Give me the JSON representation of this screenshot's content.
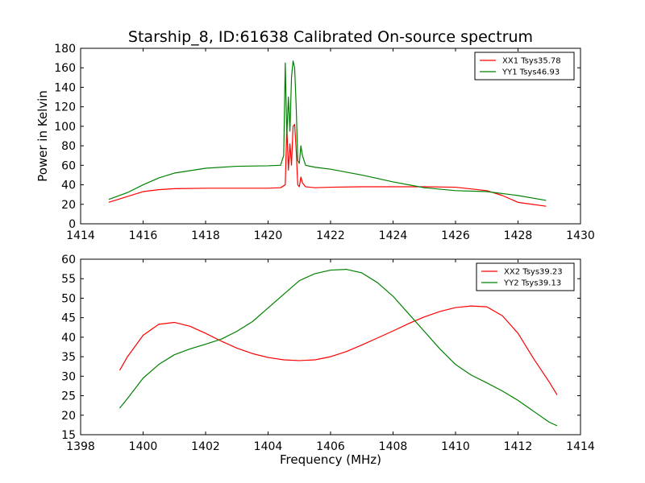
{
  "chart_data": [
    {
      "type": "line",
      "title": "Starship_8, ID:61638 Calibrated On-source spectrum",
      "xlabel": "",
      "ylabel": "Power in Kelvin",
      "xlim": [
        1414,
        1430
      ],
      "ylim": [
        0,
        180
      ],
      "xticks": [
        "1414",
        "1416",
        "1418",
        "1420",
        "1422",
        "1424",
        "1426",
        "1428",
        "1430"
      ],
      "yticks": [
        "0",
        "20",
        "40",
        "60",
        "80",
        "100",
        "120",
        "140",
        "160",
        "180"
      ],
      "grid": false,
      "legend_position": "top-right",
      "series": [
        {
          "name": "XX1 Tsys35.78",
          "color": "#ff0000",
          "x": [
            1414.9,
            1415.5,
            1416,
            1416.5,
            1417,
            1418,
            1419,
            1420,
            1420.4,
            1420.55,
            1420.6,
            1420.65,
            1420.7,
            1420.75,
            1420.8,
            1420.85,
            1420.9,
            1420.95,
            1421.0,
            1421.05,
            1421.1,
            1421.2,
            1421.5,
            1422,
            1423,
            1424,
            1425,
            1426,
            1427,
            1427.5,
            1428,
            1428.9
          ],
          "values": [
            22,
            28,
            33,
            35,
            36,
            36.5,
            36.5,
            36.5,
            37,
            40,
            100,
            55,
            82,
            60,
            100,
            102,
            75,
            40,
            38,
            48,
            42,
            38,
            37,
            37.5,
            38,
            38,
            38,
            37.5,
            34,
            29,
            22,
            18
          ]
        },
        {
          "name": "YY1 Tsys46.93",
          "color": "#008000",
          "x": [
            1414.9,
            1415.5,
            1416,
            1416.5,
            1417,
            1418,
            1419,
            1420,
            1420.4,
            1420.5,
            1420.55,
            1420.6,
            1420.65,
            1420.7,
            1420.75,
            1420.8,
            1420.85,
            1420.9,
            1420.95,
            1421.0,
            1421.05,
            1421.1,
            1421.2,
            1421.5,
            1422,
            1423,
            1424,
            1425,
            1426,
            1427,
            1428,
            1428.9
          ],
          "values": [
            25,
            32,
            40,
            47,
            52,
            57,
            59,
            59.5,
            60,
            70,
            165,
            90,
            130,
            95,
            150,
            167,
            160,
            120,
            65,
            62,
            80,
            70,
            60,
            58,
            56,
            50,
            43,
            37,
            34,
            33,
            29,
            24
          ]
        }
      ]
    },
    {
      "type": "line",
      "title": "",
      "xlabel": "Frequency (MHz)",
      "ylabel": "",
      "xlim": [
        1398,
        1414
      ],
      "ylim": [
        15,
        60
      ],
      "xticks": [
        "1398",
        "1400",
        "1402",
        "1404",
        "1406",
        "1408",
        "1410",
        "1412",
        "1414"
      ],
      "yticks": [
        "15",
        "20",
        "25",
        "30",
        "35",
        "40",
        "45",
        "50",
        "55",
        "60"
      ],
      "grid": false,
      "legend_position": "top-right",
      "series": [
        {
          "name": "XX2 Tsys39.23",
          "color": "#ff0000",
          "x": [
            1399.25,
            1399.5,
            1400,
            1400.5,
            1401,
            1401.5,
            1402,
            1402.5,
            1403,
            1403.5,
            1404,
            1404.5,
            1405,
            1405.5,
            1406,
            1406.5,
            1407,
            1407.5,
            1408,
            1408.5,
            1409,
            1409.5,
            1410,
            1410.5,
            1411,
            1411.5,
            1412,
            1412.5,
            1413,
            1413.25
          ],
          "values": [
            31.5,
            35,
            40.5,
            43.3,
            43.8,
            42.8,
            41,
            39,
            37.2,
            35.8,
            34.8,
            34.2,
            34,
            34.2,
            35,
            36.3,
            38,
            39.8,
            41.6,
            43.5,
            45.2,
            46.6,
            47.6,
            48,
            47.8,
            45.5,
            41,
            34.5,
            28.5,
            25.2
          ]
        },
        {
          "name": "YY2 Tsys39.13",
          "color": "#008000",
          "x": [
            1399.25,
            1399.5,
            1400,
            1400.5,
            1401,
            1401.5,
            1402,
            1402.5,
            1403,
            1403.5,
            1404,
            1404.5,
            1405,
            1405.5,
            1406,
            1406.5,
            1407,
            1407.5,
            1408,
            1408.5,
            1409,
            1409.5,
            1410,
            1410.5,
            1411,
            1411.5,
            1412,
            1412.5,
            1413,
            1413.25
          ],
          "values": [
            21.8,
            24.3,
            29.5,
            33,
            35.5,
            37,
            38.2,
            39.5,
            41.5,
            44,
            47.5,
            51,
            54.5,
            56.3,
            57.2,
            57.4,
            56.5,
            54,
            50.5,
            46,
            41.5,
            37,
            33,
            30.3,
            28.3,
            26.2,
            23.8,
            21,
            18.2,
            17.3
          ]
        }
      ]
    }
  ]
}
